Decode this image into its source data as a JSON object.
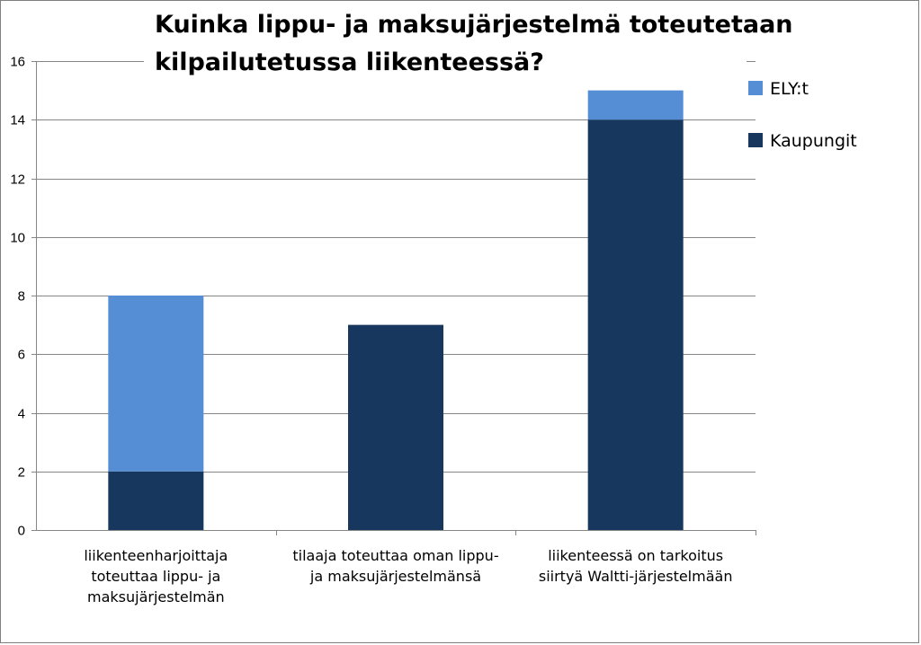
{
  "chart_data": {
    "type": "bar",
    "stacked": true,
    "title_lines": [
      "Kuinka lippu- ja maksujärjestelmä toteutetaan",
      "kilpailutetussa liikenteessä?"
    ],
    "categories": [
      [
        "liikenteenharjoittaja",
        "toteuttaa lippu- ja",
        "maksujärjestelmän"
      ],
      [
        "tilaaja toteuttaa oman lippu-",
        "ja maksujärjestelmänsä"
      ],
      [
        "liikenteessä on tarkoitus",
        "siirtyä Waltti-järjestelmään"
      ]
    ],
    "series": [
      {
        "name": "Kaupungit",
        "color": "#17375e",
        "values": [
          2,
          7,
          14
        ]
      },
      {
        "name": "ELY:t",
        "color": "#558ed5",
        "values": [
          6,
          0,
          1
        ]
      }
    ],
    "ylim": [
      0,
      16
    ],
    "yticks": [
      0,
      2,
      4,
      6,
      8,
      10,
      12,
      14,
      16
    ],
    "grid": true,
    "legend_position": "right"
  }
}
